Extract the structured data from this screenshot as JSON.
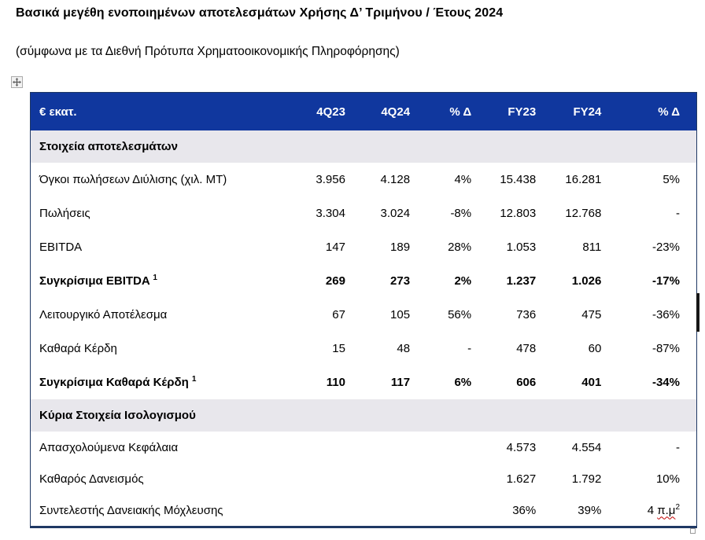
{
  "page": {
    "title": "Βασικά μεγέθη ενοποιημένων αποτελεσμάτων Χρήσης Δ’ Τριμήνου / Έτους 2024",
    "subtitle": "(σύμφωνα με τα Διεθνή Πρότυπα Χρηματοοικονομικής Πληροφόρησης)"
  },
  "colors": {
    "header_bg": "#10379E",
    "table_border": "#1F3864",
    "section_bg": "#E8E7EC",
    "spellcheck_squiggle": "#C00000"
  },
  "icons": {
    "move_handle": "table-move-handle-icon",
    "resize_handle": "table-resize-handle",
    "edge_marker": "scrollbar-thumb"
  },
  "table": {
    "columns": [
      "€ εκατ.",
      "4Q23",
      "4Q24",
      "% Δ",
      "FY23",
      "FY24",
      "% Δ"
    ],
    "sections": [
      {
        "header": "Στοιχεία αποτελεσμάτων",
        "rows": [
          {
            "label": "Όγκοι πωλήσεων Διύλισης (χιλ. ΜΤ)",
            "bold": false,
            "values": [
              "3.956",
              "4.128",
              "4%",
              "15.438",
              "16.281"
            ],
            "last": {
              "text": "5%"
            }
          },
          {
            "label": "Πωλήσεις",
            "bold": false,
            "values": [
              "3.304",
              "3.024",
              "-8%",
              "12.803",
              "12.768"
            ],
            "last": {
              "text": "-"
            }
          },
          {
            "label": "EBITDA",
            "bold": false,
            "values": [
              "147",
              "189",
              "28%",
              "1.053",
              "811"
            ],
            "last": {
              "text": "-23%"
            }
          },
          {
            "label": "Συγκρίσιμα EBITDA",
            "label_sup": "1",
            "bold": true,
            "values": [
              "269",
              "273",
              "2%",
              "1.237",
              "1.026"
            ],
            "last": {
              "text": "-17%"
            }
          },
          {
            "label": "Λειτουργικό Αποτέλεσμα",
            "bold": false,
            "values": [
              "67",
              "105",
              "56%",
              "736",
              "475"
            ],
            "last": {
              "text": "-36%"
            }
          },
          {
            "label": "Καθαρά Κέρδη",
            "bold": false,
            "values": [
              "15",
              "48",
              "-",
              "478",
              "60"
            ],
            "last": {
              "text": "-87%"
            }
          },
          {
            "label": "Συγκρίσιμα Καθαρά Κέρδη",
            "label_sup": "1",
            "bold": true,
            "values": [
              "110",
              "117",
              "6%",
              "606",
              "401"
            ],
            "last": {
              "text": "-34%"
            }
          }
        ]
      },
      {
        "header": "Κύρια Στοιχεία Ισολογισμού",
        "rows": [
          {
            "label": "Απασχολούμενα Κεφάλαια",
            "bold": false,
            "values": [
              "",
              "",
              "",
              "4.573",
              "4.554"
            ],
            "last": {
              "text": "-"
            }
          },
          {
            "label": "Καθαρός Δανεισμός",
            "bold": false,
            "values": [
              "",
              "",
              "",
              "1.627",
              "1.792"
            ],
            "last": {
              "text": "10%"
            }
          },
          {
            "label": "Συντελεστής Δανειακής Μόχλευσης",
            "bold": false,
            "values": [
              "",
              "",
              "",
              "36%",
              "39%"
            ],
            "last": {
              "text": "4 ",
              "squiggle": "π.μ",
              "sup": "2"
            }
          }
        ]
      }
    ]
  }
}
